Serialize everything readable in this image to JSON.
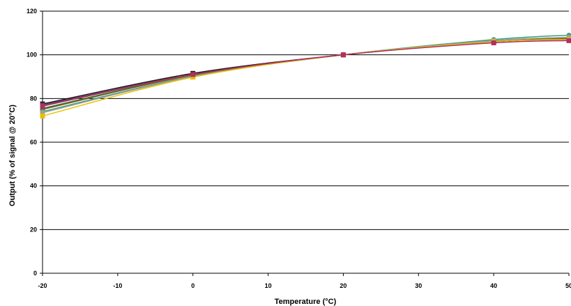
{
  "chart_data": {
    "type": "line",
    "title": "",
    "xlabel": "Temperature (°C)",
    "ylabel": "Output (% of signal @ 20°C)",
    "xlim": [
      -20,
      50
    ],
    "ylim": [
      0,
      120
    ],
    "x_ticks": [
      "-20",
      "-10",
      "0",
      "10",
      "20",
      "30",
      "40",
      "50"
    ],
    "y_ticks": [
      "0",
      "20",
      "40",
      "60",
      "80",
      "100",
      "120"
    ],
    "grid": "horizontal",
    "legend": "none",
    "x": [
      -20,
      0,
      20,
      40,
      50
    ],
    "series": [
      {
        "color": "#1a1a1a",
        "marker": "square",
        "values": [
          77.5,
          91.5,
          100,
          106.0,
          107.5
        ]
      },
      {
        "color": "#6b2f6b",
        "marker": "square",
        "values": [
          77.0,
          91.0,
          100,
          106.0,
          107.0
        ]
      },
      {
        "color": "#2e7d32",
        "marker": "triangle",
        "values": [
          75.5,
          90.8,
          100,
          106.5,
          108.0
        ]
      },
      {
        "color": "#7a5a1e",
        "marker": "circle",
        "values": [
          75.0,
          90.7,
          100,
          106.0,
          107.5
        ]
      },
      {
        "color": "#3aa07a",
        "marker": "circle",
        "values": [
          74.0,
          90.2,
          100,
          107.0,
          109.0
        ]
      },
      {
        "color": "#9e9e9e",
        "marker": "square",
        "values": [
          73.5,
          90.0,
          100,
          106.5,
          108.0
        ]
      },
      {
        "color": "#e6c000",
        "marker": "square",
        "values": [
          72.0,
          89.8,
          100,
          106.0,
          107.0
        ]
      },
      {
        "color": "#b03060",
        "marker": "square",
        "values": [
          76.5,
          91.0,
          100,
          105.5,
          106.5
        ]
      }
    ]
  }
}
